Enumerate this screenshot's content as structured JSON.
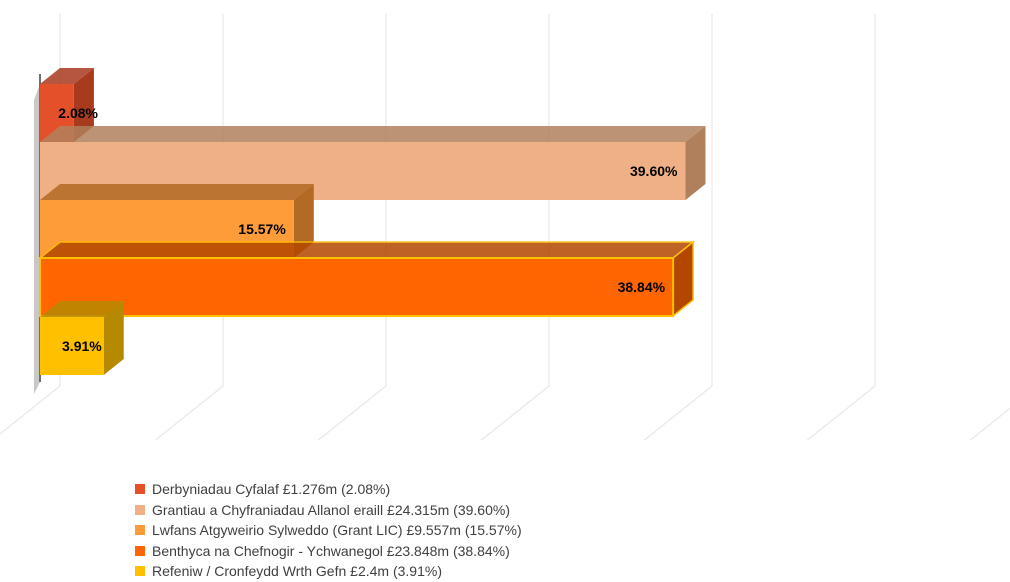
{
  "chart_data": {
    "type": "bar",
    "orientation": "horizontal",
    "three_d": true,
    "title": "",
    "xlabel": "",
    "ylabel": "",
    "xlim": [
      0,
      60
    ],
    "x_ticks": [
      "0%",
      "10%",
      "20%",
      "30%",
      "40%",
      "50%",
      "60%"
    ],
    "grid": true,
    "legend_position": "bottom",
    "series": [
      {
        "name": "Derbyniadau Cyfalaf £1.276m (2.08%)",
        "value": 2.08,
        "label": "2.08%",
        "color": "#e4502a",
        "side_color": "#a83a1e"
      },
      {
        "name": "Grantiau a Chyfraniadau Allanol eraill £24.315m (39.60%)",
        "value": 39.6,
        "label": "39.60%",
        "color": "#efb085",
        "side_color": "#b0805c"
      },
      {
        "name": "Lwfans Atgyweirio Sylweddo (Grant LIC) £9.557m (15.57%)",
        "value": 15.57,
        "label": "15.57%",
        "color": "#ff9c3a",
        "side_color": "#b36a24"
      },
      {
        "name": "Benthyca na Chefnogir - Ychwanegol £23.848m (38.84%)",
        "value": 38.84,
        "label": "38.84%",
        "color": "#ff6600",
        "side_color": "#b34700",
        "outline": "#ffc000"
      },
      {
        "name": "Refeniw / Cronfeydd Wrth Gefn £2.4m (3.91%)",
        "value": 3.91,
        "label": "3.91%",
        "color": "#ffc000",
        "side_color": "#b58a00"
      }
    ]
  }
}
